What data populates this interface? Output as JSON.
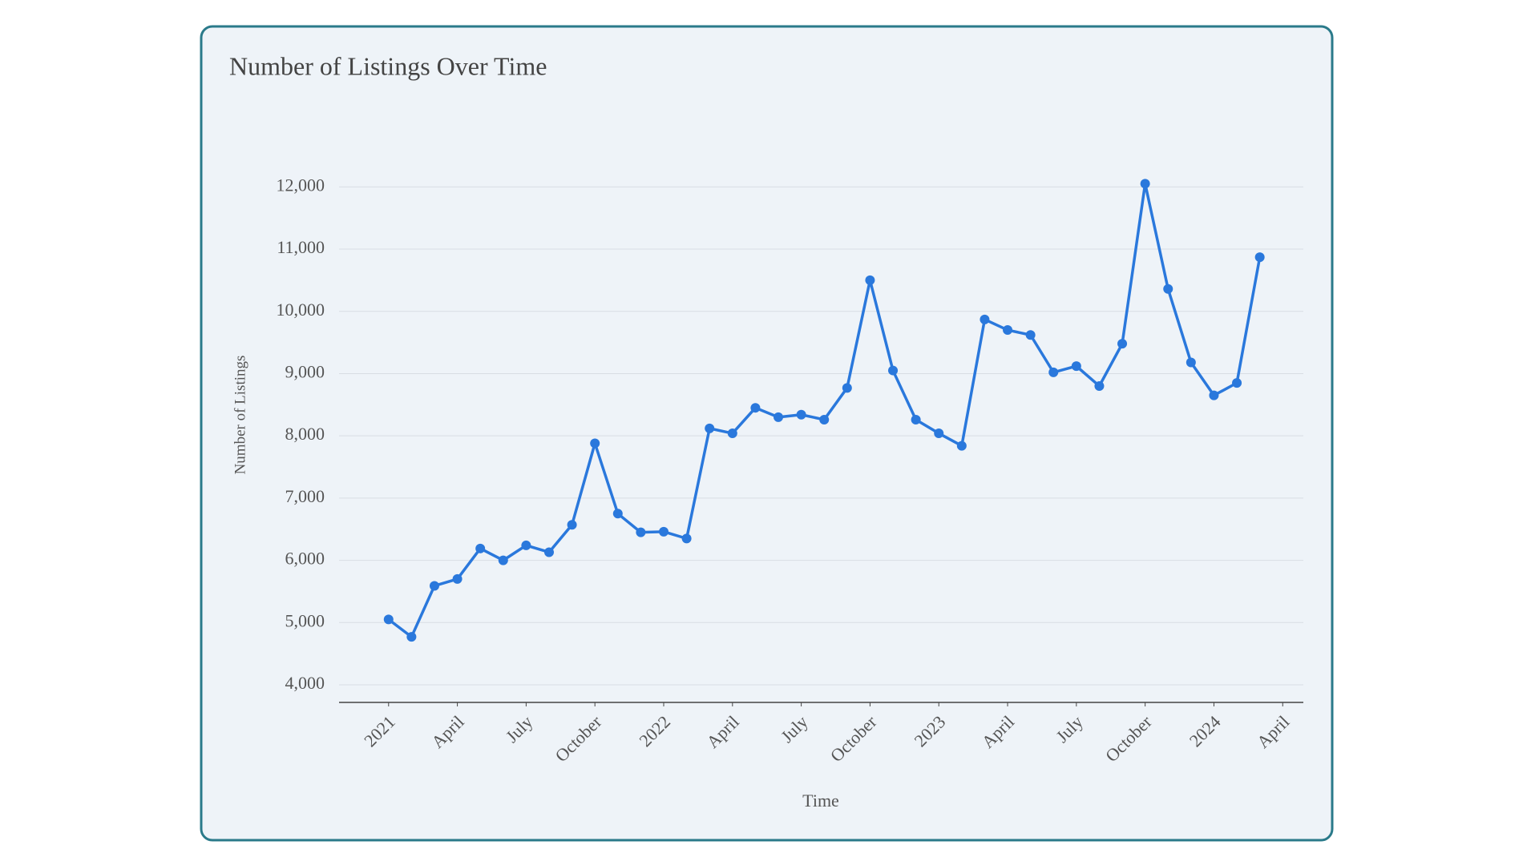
{
  "chart_data": {
    "type": "line",
    "title": "Number of Listings Over Time",
    "x_label": "Time",
    "y_label": "Number of Listings",
    "x": [
      0,
      1,
      2,
      3,
      4,
      5,
      6,
      7,
      8,
      9,
      10,
      11,
      12,
      13,
      14,
      15,
      16,
      17,
      18,
      19,
      20,
      21,
      22,
      23,
      24,
      25,
      26,
      27,
      28,
      29,
      30,
      31,
      32,
      33,
      34,
      35,
      36,
      37,
      38
    ],
    "series": [
      {
        "name": "Number of Listings",
        "color": "#2a78dc",
        "values": [
          5050,
          4770,
          5590,
          5700,
          6190,
          6000,
          6240,
          6130,
          6570,
          7880,
          6750,
          6450,
          6460,
          6350,
          8120,
          8040,
          8450,
          8300,
          8340,
          8260,
          8770,
          10500,
          9050,
          8260,
          8040,
          7840,
          9870,
          9700,
          9620,
          9020,
          9120,
          8800,
          9480,
          12050,
          10360,
          9180,
          8650,
          8850,
          10870
        ]
      }
    ],
    "xlim": [
      -2.16,
      39.9
    ],
    "xticks": [
      {
        "value": 0,
        "label": "2021"
      },
      {
        "value": 3,
        "label": "April"
      },
      {
        "value": 6,
        "label": "July"
      },
      {
        "value": 9,
        "label": "October"
      },
      {
        "value": 12,
        "label": "2022"
      },
      {
        "value": 15,
        "label": "April"
      },
      {
        "value": 18,
        "label": "July"
      },
      {
        "value": 21,
        "label": "October"
      },
      {
        "value": 24,
        "label": "2023"
      },
      {
        "value": 27,
        "label": "April"
      },
      {
        "value": 30,
        "label": "July"
      },
      {
        "value": 33,
        "label": "October"
      },
      {
        "value": 36,
        "label": "2024"
      },
      {
        "value": 39,
        "label": "April"
      }
    ],
    "ylim": [
      3717,
      12300
    ],
    "yticks": [
      {
        "value": 4000,
        "label": "4,000"
      },
      {
        "value": 5000,
        "label": "5,000"
      },
      {
        "value": 6000,
        "label": "6,000"
      },
      {
        "value": 7000,
        "label": "7,000"
      },
      {
        "value": 8000,
        "label": "8,000"
      },
      {
        "value": 9000,
        "label": "9,000"
      },
      {
        "value": 10000,
        "label": "10,000"
      },
      {
        "value": 11000,
        "label": "11,000"
      },
      {
        "value": 12000,
        "label": "12,000"
      }
    ],
    "grid": true
  }
}
